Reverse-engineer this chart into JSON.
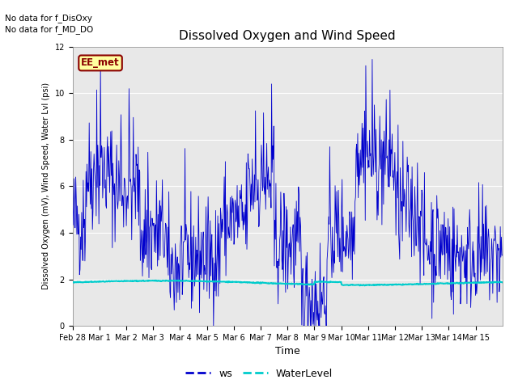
{
  "title": "Dissolved Oxygen and Wind Speed",
  "ylabel": "Dissolved Oxygen (mV), Wind Speed, Water Lvl (psi)",
  "xlabel": "Time",
  "text_no_data_1": "No data for f_DisOxy",
  "text_no_data_2": "No data for f_MD_DO",
  "label_box": "EE_met",
  "ylim": [
    0,
    12
  ],
  "ws_color": "#0000CD",
  "water_color": "#00CCCC",
  "bg_color": "#E8E8E8",
  "fig_bg": "#ffffff",
  "legend_ws": "ws",
  "legend_water": "WaterLevel",
  "tick_dates": [
    "Feb 28",
    "Mar 1",
    "Mar 2",
    "Mar 3",
    "Mar 4",
    "Mar 5",
    "Mar 6",
    "Mar 7",
    "Mar 8",
    "Mar 9",
    "Mar 10",
    "Mar 11",
    "Mar 12",
    "Mar 13",
    "Mar 14",
    "Mar 15"
  ],
  "yticks": [
    0,
    2,
    4,
    6,
    8,
    10,
    12
  ],
  "title_fontsize": 11,
  "ylabel_fontsize": 7,
  "xlabel_fontsize": 9,
  "tick_fontsize": 7,
  "nodata_fontsize": 7.5,
  "legend_fontsize": 9
}
